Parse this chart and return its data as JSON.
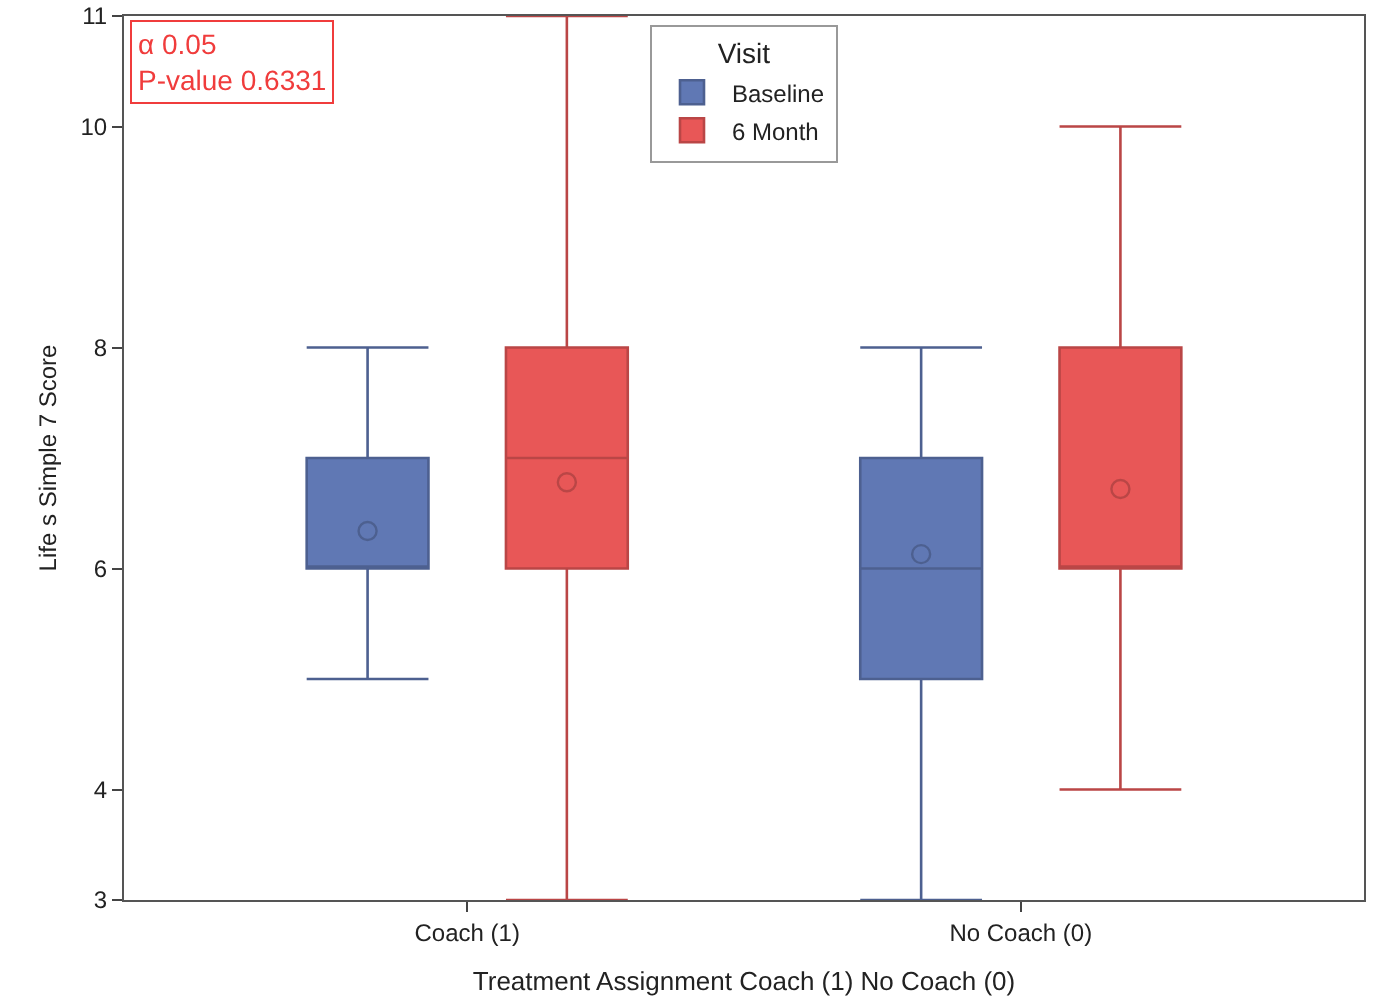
{
  "chart_data": {
    "type": "box",
    "xlabel": "Treatment Assignment Coach (1) No Coach (0)",
    "ylabel": "Life s Simple 7 Score",
    "legend_title": "Visit",
    "categories": [
      "Coach (1)",
      "No Coach (0)"
    ],
    "ylim": [
      3,
      11
    ],
    "yticks": [
      3,
      4,
      6,
      8,
      10,
      11
    ],
    "grid": false,
    "legend": "top",
    "marker": "circle",
    "series": [
      {
        "name": "Baseline",
        "color": "#6078b4",
        "boxes": [
          {
            "low": 5,
            "q1": 6,
            "median": 6,
            "q3": 7,
            "high": 8,
            "mean": 6.34
          },
          {
            "low": 3,
            "q1": 5,
            "median": 6,
            "q3": 7,
            "high": 8,
            "mean": 6.13
          }
        ]
      },
      {
        "name": "6 Month",
        "color": "#e85757",
        "boxes": [
          {
            "low": 3,
            "q1": 6,
            "median": 7,
            "q3": 8,
            "high": 11,
            "mean": 6.78
          },
          {
            "low": 4,
            "q1": 6,
            "median": 6,
            "q3": 8,
            "high": 10,
            "mean": 6.72
          }
        ]
      }
    ],
    "annotations": [
      "α 0.05",
      "P-value 0.6331"
    ]
  }
}
